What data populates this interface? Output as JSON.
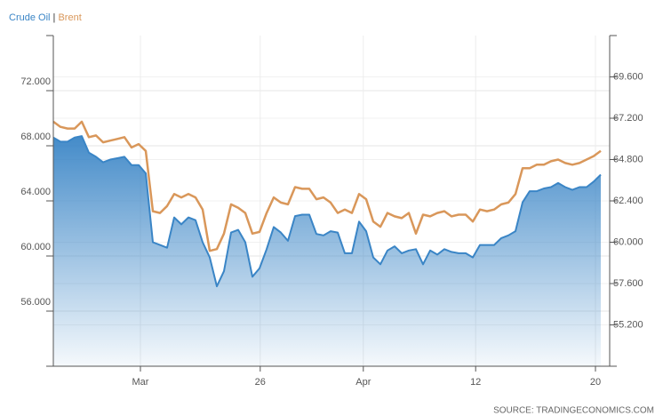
{
  "chart_data": {
    "type": "line",
    "legend_separator": "|",
    "source": "SOURCE: TRADINGECONOMICS.COM",
    "x": [
      0,
      1,
      2,
      3,
      4,
      5,
      6,
      7,
      8,
      9,
      10,
      11,
      12,
      13,
      14,
      15,
      16,
      17,
      18,
      19,
      20,
      21,
      22,
      23,
      24,
      25,
      26,
      27,
      28,
      29,
      30,
      31,
      32,
      33,
      34,
      35,
      36,
      37,
      38,
      39,
      40,
      41,
      42,
      43,
      44,
      45,
      46,
      47,
      48,
      49,
      50,
      51,
      52,
      53,
      54,
      55,
      56,
      57,
      58,
      59,
      60,
      61,
      62,
      63,
      64,
      65,
      66,
      67,
      68,
      69,
      70,
      71,
      72,
      73,
      74,
      75,
      76,
      77
    ],
    "xlim": [
      0,
      78.25
    ],
    "xticks": [
      {
        "value": 12.25,
        "label": "Mar"
      },
      {
        "value": 29.1,
        "label": "26"
      },
      {
        "value": 43.6,
        "label": "Apr"
      },
      {
        "value": 59.4,
        "label": "12"
      },
      {
        "value": 76.25,
        "label": "20"
      }
    ],
    "ylim": [
      52,
      76
    ],
    "yticks": [
      {
        "value": 56,
        "label": "56.000"
      },
      {
        "value": 60,
        "label": "60.000"
      },
      {
        "value": 64,
        "label": "64.000"
      },
      {
        "value": 68,
        "label": "68.000"
      },
      {
        "value": 72,
        "label": "72.000"
      }
    ],
    "y2lim": [
      52.8,
      72
    ],
    "y2ticks": [
      {
        "value": 55.2,
        "label": "55.200"
      },
      {
        "value": 57.6,
        "label": "57.600"
      },
      {
        "value": 60,
        "label": "60.000"
      },
      {
        "value": 62.4,
        "label": "62.400"
      },
      {
        "value": 64.8,
        "label": "64.800"
      },
      {
        "value": 67.2,
        "label": "67.200"
      },
      {
        "value": 69.6,
        "label": "69.600"
      }
    ],
    "grid": true,
    "series": [
      {
        "name": "Crude Oil",
        "color": "#3a85c6",
        "values": [
          68.6,
          68.3,
          68.3,
          68.6,
          68.7,
          67.5,
          67.2,
          66.8,
          67.0,
          67.1,
          67.2,
          66.6,
          66.6,
          66.0,
          61.0,
          60.8,
          60.6,
          62.8,
          62.3,
          62.8,
          62.6,
          61.0,
          59.9,
          57.8,
          58.9,
          61.7,
          61.9,
          61.0,
          58.5,
          59.1,
          60.5,
          62.1,
          61.7,
          61.1,
          62.9,
          63.0,
          63.0,
          61.6,
          61.5,
          61.8,
          61.7,
          60.2,
          60.2,
          62.5,
          61.8,
          59.9,
          59.4,
          60.4,
          60.7,
          60.2,
          60.4,
          60.5,
          59.4,
          60.4,
          60.1,
          60.5,
          60.3,
          60.2,
          60.2,
          59.9,
          60.8,
          60.8,
          60.8,
          61.3,
          61.5,
          61.8,
          63.9,
          64.7,
          64.7,
          64.9,
          65.0,
          65.3,
          65.0,
          64.8,
          65.0,
          65.0,
          65.4,
          65.9
        ]
      },
      {
        "name": "Brent",
        "color": "#d9975a",
        "axis": "y2",
        "values": [
          67.0,
          66.7,
          66.6,
          66.6,
          67.0,
          66.1,
          66.2,
          65.8,
          65.9,
          66.0,
          66.1,
          65.5,
          65.7,
          65.3,
          61.8,
          61.7,
          62.1,
          62.8,
          62.6,
          62.8,
          62.6,
          61.9,
          59.5,
          59.6,
          60.5,
          62.2,
          62.0,
          61.7,
          60.5,
          60.6,
          61.7,
          62.6,
          62.3,
          62.2,
          63.2,
          63.1,
          63.1,
          62.5,
          62.6,
          62.3,
          61.7,
          61.9,
          61.7,
          62.8,
          62.5,
          61.2,
          60.9,
          61.7,
          61.5,
          61.4,
          61.7,
          60.5,
          61.6,
          61.5,
          61.7,
          61.8,
          61.5,
          61.6,
          61.6,
          61.2,
          61.9,
          61.8,
          61.9,
          62.2,
          62.3,
          62.8,
          64.3,
          64.3,
          64.5,
          64.5,
          64.7,
          64.8,
          64.6,
          64.5,
          64.6,
          64.8,
          65.0,
          65.3
        ]
      }
    ]
  }
}
